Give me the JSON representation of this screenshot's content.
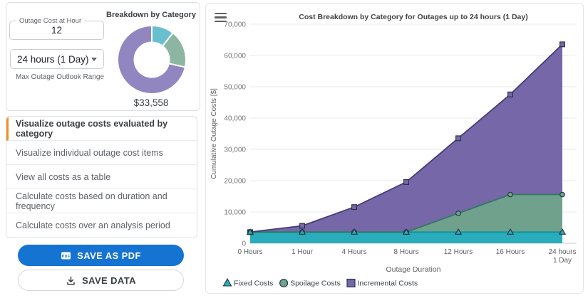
{
  "sidebar": {
    "cost_field": {
      "label": "Outage Cost at Hour",
      "value": "12"
    },
    "range_select": {
      "value": "24 hours (1 Day)",
      "helper": "Max Outage Outlook Range",
      "caret_icon": "chevron-down"
    },
    "menu": {
      "active_index": 0,
      "items": [
        {
          "label": "Visualize outage costs evaluated by category"
        },
        {
          "label": "Visualize individual outage cost items"
        },
        {
          "label": "View all costs as a table"
        },
        {
          "label": "Calculate costs based on duration and frequency"
        },
        {
          "label": "Calculate costs over an analysis period"
        }
      ]
    },
    "buttons": {
      "save_pdf": "SAVE AS PDF",
      "save_pdf_icon": "pdf-file",
      "save_data": "SAVE DATA",
      "save_data_icon": "download"
    }
  },
  "chart_card": {
    "menu_icon": "hamburger"
  },
  "chart_data": [
    {
      "type": "pie",
      "donut": true,
      "title": "Breakdown by Category",
      "total_label": "$33,558",
      "labels": [
        "Fixed Costs",
        "Spoilage Costs",
        "Incremental Costs"
      ],
      "values": [
        3558,
        6000,
        24000
      ],
      "colors": [
        "#68bfcd",
        "#8db6a2",
        "#9286c0"
      ]
    },
    {
      "type": "area",
      "stacked": true,
      "title": "Cost Breakdown by Category for Outages up to 24 hours (1 Day)",
      "xlabel": "Outage Duration",
      "ylabel": "Cumulative Outage Costs [$]",
      "ylim": [
        0,
        70000
      ],
      "ytick_step": 10000,
      "ytick_labels": [
        "0",
        "10,000",
        "20,000",
        "30,000",
        "40,000",
        "50,000",
        "60,000",
        "70,000"
      ],
      "categories": [
        "0 Hours",
        "1 Hour",
        "4 Hours",
        "8 Hours",
        "12 Hours",
        "16 Hours",
        "24 hours\n1 Day"
      ],
      "series": [
        {
          "name": "Fixed Costs",
          "marker": "triangle",
          "fill": "#29adbd",
          "line": "#0f93a1",
          "values": [
            3558,
            3558,
            3558,
            3558,
            3558,
            3558,
            3558
          ]
        },
        {
          "name": "Spoilage Costs",
          "marker": "circle",
          "fill": "#6fa18d",
          "line": "#2f7a5d",
          "values": [
            0,
            0,
            0,
            0,
            6000,
            12000,
            12000
          ]
        },
        {
          "name": "Incremental Costs",
          "marker": "square",
          "fill": "#7667a9",
          "line": "#483b76",
          "values": [
            0,
            2000,
            8000,
            16000,
            24000,
            32000,
            48000
          ]
        }
      ],
      "totals": [
        3558,
        5558,
        11558,
        19558,
        33558,
        47558,
        63558
      ],
      "grid": true,
      "legend_position": "bottom-left"
    }
  ]
}
